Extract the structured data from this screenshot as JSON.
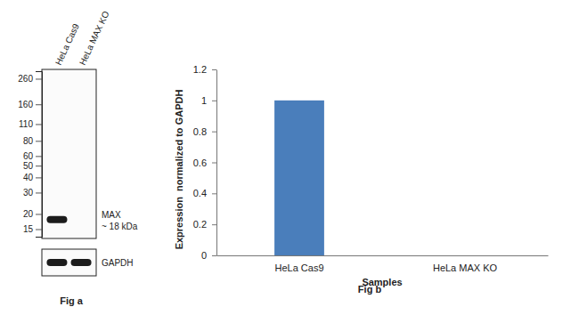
{
  "chart_data": {
    "type": "bar",
    "title": "Fig b",
    "x_label": "Samples",
    "y_label": "Expression  normalized to GAPDH",
    "categories": [
      "HeLa Cas9",
      "HeLa MAX KO"
    ],
    "values": [
      1,
      0
    ],
    "color": "#4a7ebb",
    "ylim": [
      0,
      1.2
    ],
    "yticks": [
      0,
      0.2,
      0.4,
      0.6,
      0.8,
      1,
      1.2
    ],
    "grid": false
  },
  "blot": {
    "title": "Fig a",
    "lanes": [
      "HeLa Cas9",
      "HeLa MAX KO"
    ],
    "log": true,
    "ylim": [
      300,
      13
    ],
    "markers": [
      260,
      160,
      110,
      80,
      60,
      50,
      40,
      30,
      20,
      15
    ],
    "bands": [
      {
        "label": "MAX",
        "size": 18,
        "size_label": "~ 18 kDa",
        "present": [
          true,
          false
        ]
      }
    ],
    "loading_control": {
      "label": "GAPDH",
      "present": [
        true,
        true
      ]
    }
  }
}
